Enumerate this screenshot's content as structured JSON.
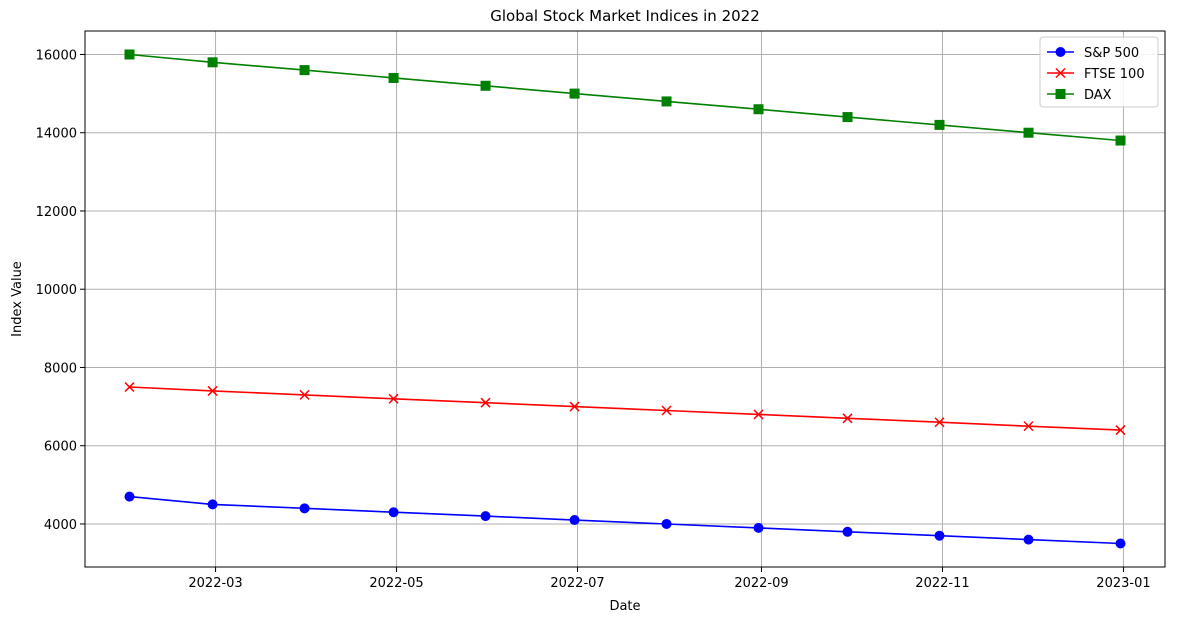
{
  "chart_data": {
    "type": "line",
    "title": "Global Stock Market Indices in 2022",
    "xlabel": "Date",
    "ylabel": "Index Value",
    "x": [
      "2022-01-31",
      "2022-02-28",
      "2022-03-31",
      "2022-04-30",
      "2022-05-31",
      "2022-06-30",
      "2022-07-31",
      "2022-08-31",
      "2022-09-30",
      "2022-10-31",
      "2022-11-30",
      "2022-12-31"
    ],
    "xlim": [
      "2022-01-16",
      "2023-01-15"
    ],
    "ylim": [
      2900,
      16600
    ],
    "xticks": [
      "2022-03-01",
      "2022-05-01",
      "2022-07-01",
      "2022-09-01",
      "2022-11-01",
      "2023-01-01"
    ],
    "xtick_labels": [
      "2022-03",
      "2022-05",
      "2022-07",
      "2022-09",
      "2022-11",
      "2023-01"
    ],
    "yticks": [
      4000,
      6000,
      8000,
      10000,
      12000,
      14000,
      16000
    ],
    "grid": true,
    "legend": "top-right",
    "series": [
      {
        "name": "S&P 500",
        "color": "#0000ff",
        "marker": "circle",
        "values": [
          4700,
          4500,
          4400,
          4300,
          4200,
          4100,
          4000,
          3900,
          3800,
          3700,
          3600,
          3500
        ]
      },
      {
        "name": "FTSE 100",
        "color": "#ff0000",
        "marker": "x",
        "values": [
          7500,
          7400,
          7300,
          7200,
          7100,
          7000,
          6900,
          6800,
          6700,
          6600,
          6500,
          6400
        ]
      },
      {
        "name": "DAX",
        "color": "#008000",
        "marker": "square",
        "values": [
          16000,
          15800,
          15600,
          15400,
          15200,
          15000,
          14800,
          14600,
          14400,
          14200,
          14000,
          13800
        ]
      }
    ]
  }
}
